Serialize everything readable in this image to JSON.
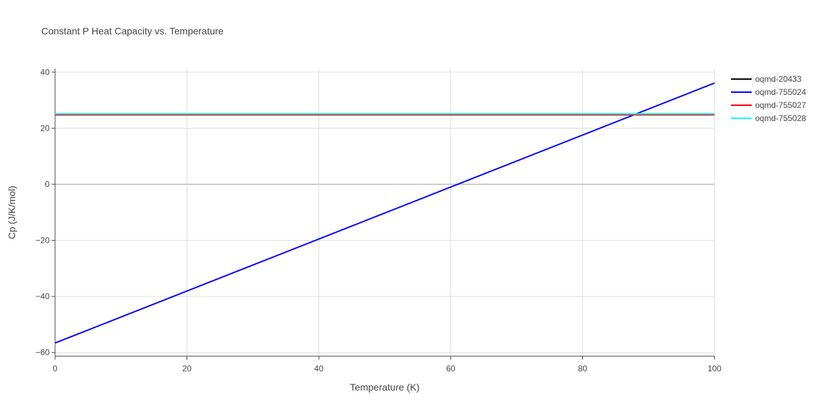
{
  "chart_data": {
    "type": "line",
    "title": "Constant P Heat Capacity vs. Temperature",
    "x_label": "Temperature (K)",
    "y_label": "Cp (J/K/mol)",
    "x": [
      0,
      100
    ],
    "series": [
      {
        "name": "oqmd-20433",
        "color": "#000000",
        "values": [
          24.8,
          24.8
        ]
      },
      {
        "name": "oqmd-755024",
        "color": "#0000ff",
        "values": [
          -56.6,
          36.1
        ]
      },
      {
        "name": "oqmd-755027",
        "color": "#ff0000",
        "values": [
          24.8,
          24.8
        ]
      },
      {
        "name": "oqmd-755028",
        "color": "#00ffff",
        "values": [
          25.1,
          25.1
        ]
      }
    ],
    "xlim": [
      0,
      100
    ],
    "xticks": [
      0,
      20,
      40,
      60,
      80,
      100
    ],
    "ylim": [
      -61.3,
      41.2
    ],
    "yticks": [
      {
        "value": -60,
        "label": "−60"
      },
      {
        "value": -40,
        "label": "−40"
      },
      {
        "value": -20,
        "label": "−20"
      },
      0,
      20,
      40
    ],
    "grid": true,
    "legend": "right"
  }
}
